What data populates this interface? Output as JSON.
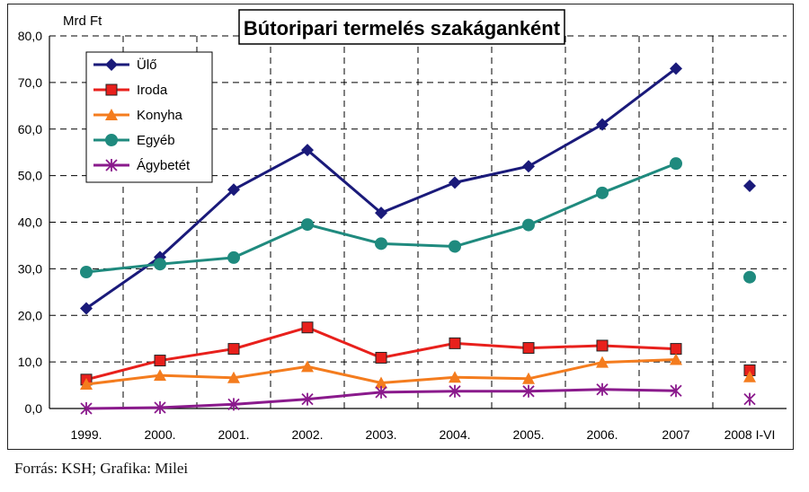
{
  "chart_data": {
    "type": "line",
    "title": "Bútoripari termelés szakáganként",
    "ylabel": "Mrd Ft",
    "xlabel": "",
    "ylim": [
      0,
      80
    ],
    "yticks": [
      "0,0",
      "10,0",
      "20,0",
      "30,0",
      "40,0",
      "50,0",
      "60,0",
      "70,0",
      "80,0"
    ],
    "categories": [
      "1999.",
      "2000.",
      "2001.",
      "2002.",
      "2003.",
      "2004.",
      "2005.",
      "2006.",
      "2007",
      "2008 I-VI"
    ],
    "grid": "dashed",
    "legend_position": "top-left",
    "series": [
      {
        "name": "Ülő",
        "color": "#1a1a7a",
        "marker": "diamond",
        "values": [
          21.5,
          32.5,
          47,
          55.5,
          42,
          48.5,
          52,
          61,
          73,
          47.8
        ]
      },
      {
        "name": "Iroda",
        "color": "#e8201c",
        "marker": "square",
        "values": [
          6.2,
          10.3,
          12.8,
          17.4,
          10.9,
          14.0,
          13.0,
          13.5,
          12.8,
          8.2
        ]
      },
      {
        "name": "Konyha",
        "color": "#f47c1e",
        "marker": "triangle",
        "values": [
          5.2,
          7.1,
          6.6,
          9.0,
          5.5,
          6.7,
          6.4,
          9.9,
          10.5,
          6.8
        ]
      },
      {
        "name": "Egyéb",
        "color": "#1f8a7e",
        "marker": "circle",
        "values": [
          29.3,
          31.0,
          32.4,
          39.5,
          35.4,
          34.8,
          39.4,
          46.3,
          52.6,
          28.2
        ]
      },
      {
        "name": "Ágybetét",
        "color": "#8a1a8c",
        "marker": "star",
        "values": [
          0.0,
          0.2,
          0.9,
          2.0,
          3.5,
          3.7,
          3.7,
          4.1,
          3.8,
          2.0
        ]
      }
    ]
  },
  "source": "Forrás: KSH; Grafika: Milei"
}
